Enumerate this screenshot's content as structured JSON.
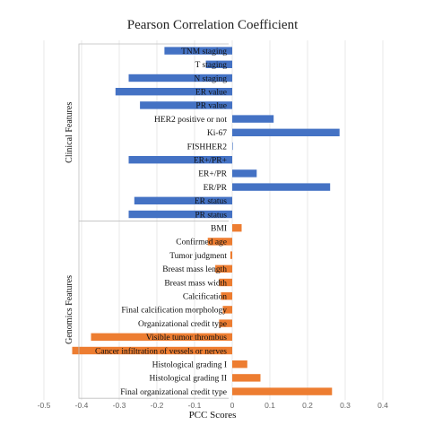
{
  "chart_data": {
    "type": "bar",
    "orientation": "horizontal",
    "title": "Pearson Correlation Coefficient",
    "xlabel": "PCC Scores",
    "xlim": [
      -0.5,
      0.4
    ],
    "xticks": [
      "-0.5",
      "-0.4",
      "-0.3",
      "-0.2",
      "-0.1",
      "0",
      "0.1",
      "0.2",
      "0.3",
      "0.4"
    ],
    "grid": "vertical",
    "colors": {
      "clinical": "#4472C4",
      "genomics": "#ED7D31"
    },
    "groups": [
      {
        "label": "Clinical Features",
        "color": "#4472C4",
        "categories": [
          "TNM staging",
          "T staging",
          "N staging",
          "ER value",
          "PR value",
          "HER2 positive or not",
          "Ki-67",
          "FISHHER2",
          "ER+/PR+",
          "ER+/PR",
          "ER/PR",
          "ER status",
          "PR status"
        ],
        "values": [
          -0.18,
          -0.07,
          -0.275,
          -0.31,
          -0.245,
          0.11,
          0.285,
          0.0,
          -0.275,
          0.065,
          0.26,
          -0.26,
          -0.275
        ]
      },
      {
        "label": "Genomics Features",
        "color": "#ED7D31",
        "categories": [
          "BMI",
          "Confirmed age",
          "Tumor judgment",
          "Breast mass length",
          "Breast mass width",
          "Calcification",
          "Final calcification morphology",
          "Organizational credit type",
          "Visible tumor thrombus",
          "Cancer infiltration of vessels or nerves",
          "Histological grading I",
          "Histological grading II",
          "Final organizational credit type"
        ],
        "values": [
          0.025,
          -0.065,
          -0.005,
          -0.045,
          -0.035,
          -0.03,
          -0.025,
          -0.035,
          -0.375,
          -0.425,
          0.04,
          0.075,
          0.265
        ]
      }
    ]
  }
}
